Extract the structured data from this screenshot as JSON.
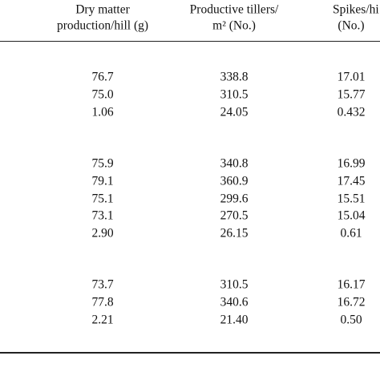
{
  "table": {
    "header": [
      [
        "Dry matter",
        "production/hill (g)"
      ],
      [
        "Productive tillers/",
        "m² (No.)"
      ],
      [
        "Spikes/hi",
        "(No.)"
      ]
    ],
    "groups": [
      [
        [
          "76.7",
          "338.8",
          "17.01"
        ],
        [
          "75.0",
          "310.5",
          "15.77"
        ],
        [
          "1.06",
          "24.05",
          "0.432"
        ]
      ],
      [
        [
          "75.9",
          "340.8",
          "16.99"
        ],
        [
          "79.1",
          "360.9",
          "17.45"
        ],
        [
          "75.1",
          "299.6",
          "15.51"
        ],
        [
          "73.1",
          "270.5",
          "15.04"
        ],
        [
          "2.90",
          "26.15",
          "0.61"
        ]
      ],
      [
        [
          "73.7",
          "310.5",
          "16.17"
        ],
        [
          "77.8",
          "340.6",
          "16.72"
        ],
        [
          "2.21",
          "21.40",
          "0.50"
        ]
      ]
    ]
  }
}
